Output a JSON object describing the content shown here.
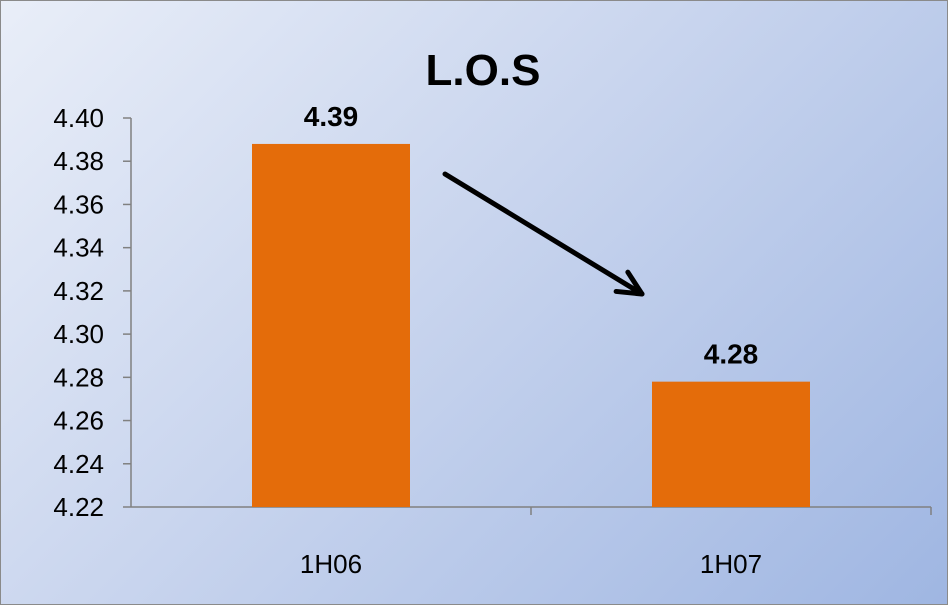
{
  "chart_data": {
    "type": "bar",
    "title": "L.O.S",
    "categories": [
      "1H06",
      "1H07"
    ],
    "values": [
      4.388,
      4.278
    ],
    "data_labels": [
      "4.39",
      "4.28"
    ],
    "ylim": [
      4.22,
      4.4
    ],
    "yticks": [
      "4.22",
      "4.24",
      "4.26",
      "4.28",
      "4.30",
      "4.32",
      "4.34",
      "4.36",
      "4.38",
      "4.40"
    ],
    "xlabel": "",
    "ylabel": "",
    "grid": false,
    "legend": "none",
    "bar_color": "#e46c0a",
    "annotation": "arrow pointing from 1H06 bar down toward 1H07 bar"
  }
}
